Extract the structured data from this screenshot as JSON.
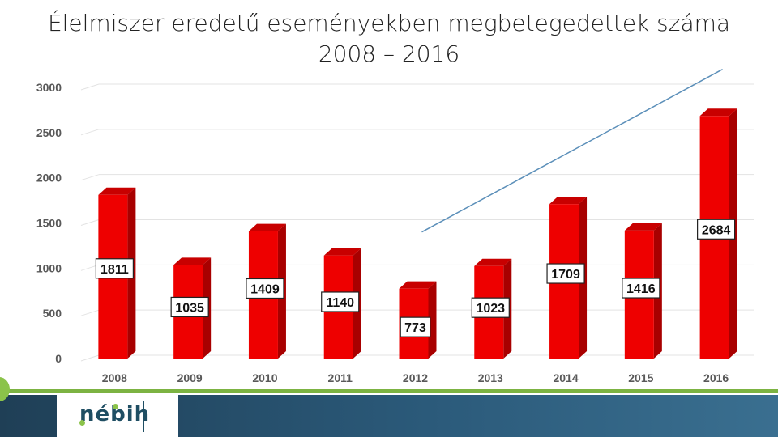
{
  "title_line1": "Élelmiszer eredetű eseményekben megbetegedettek száma",
  "title_line2": "2008 – 2016",
  "logo": {
    "text": "nébih"
  },
  "colors": {
    "bar_front": "#ee0000",
    "bar_side": "#a80000",
    "bar_top": "#c80000",
    "trend": "#5b8fb9",
    "footer": "#2b5a7a",
    "accent": "#7cb342"
  },
  "chart_data": {
    "type": "bar",
    "categories": [
      "2008",
      "2009",
      "2010",
      "2011",
      "2012",
      "2013",
      "2014",
      "2015",
      "2016"
    ],
    "values": [
      1811,
      1035,
      1409,
      1140,
      773,
      1023,
      1709,
      1416,
      2684
    ],
    "data_labels": [
      "1811",
      "1035",
      "1409",
      "1140",
      "773",
      "1023",
      "1709",
      "1416",
      "2684"
    ],
    "yticks": [
      0,
      500,
      1000,
      1500,
      2000,
      2500,
      3000
    ],
    "ytick_labels": [
      "0",
      "500",
      "1000",
      "1500",
      "2000",
      "2500",
      "3000"
    ],
    "ylim": [
      0,
      3000
    ],
    "grid": true,
    "legend": "none",
    "trendline": {
      "start": [
        "2012",
        1400
      ],
      "end": [
        "2016",
        3200
      ]
    }
  }
}
